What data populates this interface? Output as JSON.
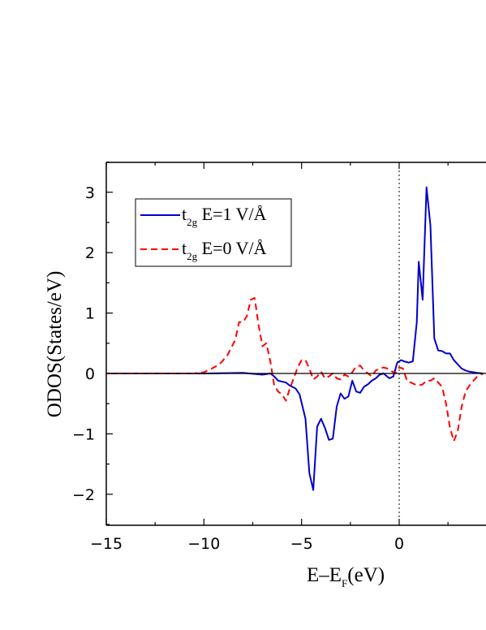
{
  "chart_data": {
    "type": "line",
    "xlabel": "E–E",
    "xlabel_sub": "F",
    "xlabel_unit": "(eV)",
    "ylabel": "ODOS(States/eV)",
    "xlim": [
      -15,
      4.5
    ],
    "ylim": [
      -2.5,
      3.5
    ],
    "xticks": [
      -15,
      -10,
      -5,
      0
    ],
    "xtick_labels": [
      "−15",
      "−10",
      "−5",
      "0"
    ],
    "yticks": [
      -2,
      -1,
      0,
      1,
      2,
      3
    ],
    "ytick_labels": [
      "−2",
      "−1",
      "0",
      "1",
      "2",
      "3"
    ],
    "zero_line": true,
    "fermi_line_x": 0,
    "legend_position": "upper-left",
    "series": [
      {
        "name": "t2g E=1 V/Å",
        "legend_main": "t",
        "legend_sub": "2g",
        "legend_rest": " E=1 V/Å",
        "color": "#0000cc",
        "style": "solid",
        "x": [
          -15,
          -10,
          -8,
          -7,
          -6.6,
          -6.4,
          -6.2,
          -5.8,
          -5.6,
          -5.3,
          -5.1,
          -4.8,
          -4.6,
          -4.4,
          -4.2,
          -4.0,
          -3.8,
          -3.6,
          -3.4,
          -3.2,
          -3.0,
          -2.8,
          -2.6,
          -2.4,
          -2.2,
          -2.0,
          -1.8,
          -1.6,
          -1.4,
          -1.2,
          -1.0,
          -0.8,
          -0.5,
          -0.3,
          -0.1,
          0.1,
          0.25,
          0.5,
          0.7,
          0.9,
          1.0,
          1.2,
          1.4,
          1.6,
          1.8,
          2.0,
          2.2,
          2.4,
          2.6,
          2.8,
          3.0,
          3.2,
          3.4,
          3.6,
          3.8,
          4.0,
          4.3
        ],
        "y": [
          0,
          0,
          0.01,
          -0.02,
          0.0,
          -0.05,
          -0.12,
          -0.15,
          -0.2,
          -0.25,
          -0.35,
          -0.75,
          -1.65,
          -1.93,
          -0.88,
          -0.75,
          -0.9,
          -1.1,
          -1.08,
          -0.55,
          -0.33,
          -0.42,
          -0.38,
          -0.12,
          -0.3,
          -0.32,
          -0.22,
          -0.18,
          -0.12,
          -0.08,
          -0.02,
          0.0,
          -0.08,
          -0.05,
          0.18,
          0.22,
          0.2,
          0.18,
          0.2,
          0.85,
          1.85,
          1.22,
          3.08,
          2.45,
          0.58,
          0.38,
          0.37,
          0.33,
          0.33,
          0.22,
          0.15,
          0.08,
          0.05,
          0.03,
          0.02,
          0.01,
          0.0
        ]
      },
      {
        "name": "t2g E=0 V/Å",
        "legend_main": "t",
        "legend_sub": "2g",
        "legend_rest": " E=0 V/Å",
        "color": "#ff0000",
        "style": "dashed",
        "x": [
          -15,
          -10.5,
          -10.0,
          -9.6,
          -9.2,
          -8.8,
          -8.4,
          -8.2,
          -8.0,
          -7.8,
          -7.6,
          -7.4,
          -7.2,
          -7.0,
          -6.8,
          -6.6,
          -6.4,
          -6.2,
          -6.0,
          -5.8,
          -5.6,
          -5.4,
          -5.2,
          -5.0,
          -4.8,
          -4.6,
          -4.4,
          -4.2,
          -4.0,
          -3.8,
          -3.6,
          -3.4,
          -3.2,
          -3.0,
          -2.8,
          -2.6,
          -2.4,
          -2.2,
          -2.0,
          -1.8,
          -1.6,
          -1.4,
          -1.2,
          -1.0,
          -0.8,
          -0.6,
          -0.4,
          -0.2,
          0,
          0.2,
          0.4,
          0.6,
          0.8,
          1.0,
          1.2,
          1.4,
          1.6,
          1.8,
          2.0,
          2.2,
          2.4,
          2.6,
          2.8,
          3.0,
          3.2,
          3.4,
          3.6,
          3.8,
          4.0,
          4.3
        ],
        "y": [
          0,
          0,
          0.02,
          0.08,
          0.15,
          0.3,
          0.55,
          0.85,
          0.85,
          0.95,
          1.22,
          1.25,
          0.8,
          0.45,
          0.5,
          0.2,
          -0.2,
          -0.3,
          -0.35,
          -0.45,
          -0.25,
          -0.08,
          0.1,
          0.22,
          0.22,
          0.08,
          -0.1,
          -0.05,
          0.03,
          -0.08,
          -0.05,
          0.0,
          -0.08,
          -0.1,
          -0.02,
          -0.05,
          0.02,
          0.12,
          0.13,
          0.05,
          0.0,
          -0.05,
          0.05,
          0.08,
          0.1,
          0.08,
          0.04,
          0.0,
          0.1,
          0.08,
          -0.12,
          -0.15,
          -0.18,
          -0.2,
          -0.18,
          -0.12,
          -0.12,
          -0.08,
          -0.15,
          -0.22,
          -0.5,
          -0.9,
          -1.12,
          -0.95,
          -0.55,
          -0.3,
          -0.2,
          -0.12,
          -0.05,
          0.0
        ]
      }
    ]
  }
}
